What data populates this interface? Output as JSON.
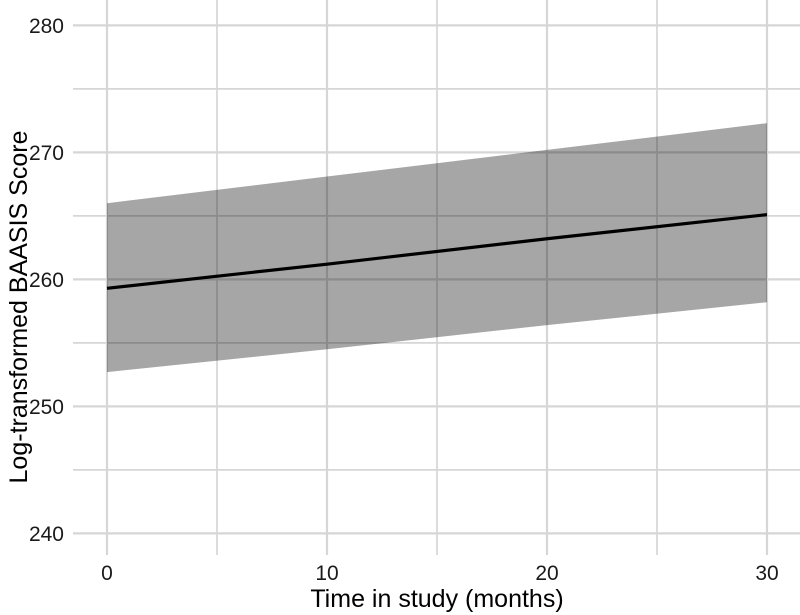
{
  "figure": {
    "background": "#ffffff"
  },
  "chart_data": {
    "type": "line",
    "title": "",
    "xlabel": "Time in study (months)",
    "ylabel": "Log-transformed BAASIS Score",
    "x": [
      0,
      10,
      20,
      30
    ],
    "series": [
      {
        "name": "fitted-mean",
        "style": "solid",
        "color": "#000000",
        "values": [
          259.3,
          261.2,
          263.2,
          265.1
        ]
      },
      {
        "name": "ci-upper",
        "style": "band-upper",
        "color": "#a6a6a6",
        "values": [
          266.0,
          268.1,
          270.2,
          272.3
        ]
      },
      {
        "name": "ci-lower",
        "style": "band-lower",
        "color": "#a6a6a6",
        "values": [
          252.7,
          254.5,
          256.4,
          258.2
        ]
      }
    ],
    "band_fill": "rgba(0,0,0,0.35)",
    "line_color": "#000000",
    "line_width": 3.2,
    "axes": {
      "x": {
        "ticks": [
          0,
          10,
          20,
          30
        ],
        "minor": [
          5,
          15,
          25
        ],
        "lim": [
          -1.5,
          31.5
        ]
      },
      "y": {
        "ticks": [
          240,
          250,
          260,
          270,
          280
        ],
        "minor": [
          245,
          255,
          265,
          275
        ],
        "lim": [
          238.3,
          282
        ]
      }
    },
    "grid": {
      "show": true,
      "color": "#d6d6d6",
      "major_width": 2.2,
      "minor_width": 1.7
    },
    "legend": "none"
  }
}
